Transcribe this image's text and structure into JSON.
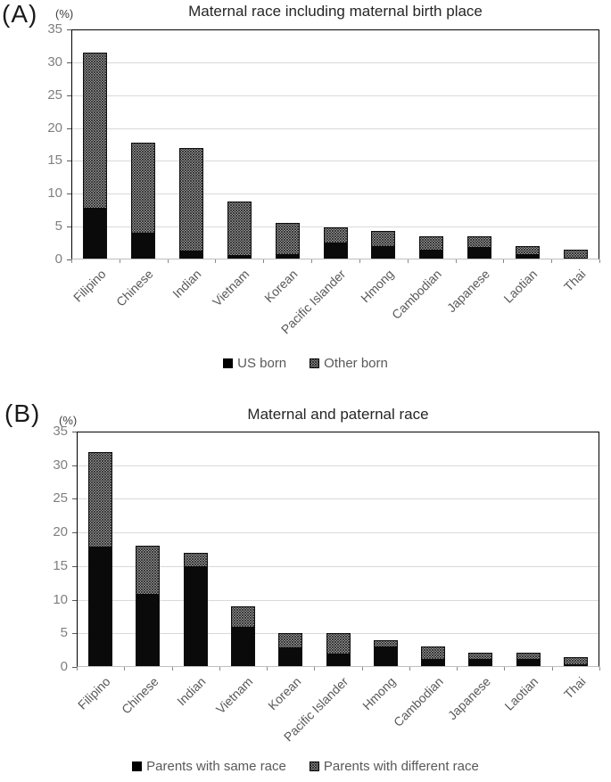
{
  "figure": {
    "panels": [
      {
        "panel_label": "(A)",
        "y_unit": "(%)",
        "title": "Maternal race including maternal birth place"
      },
      {
        "panel_label": "(B)",
        "y_unit": "(%)",
        "title": "Maternal and paternal race"
      }
    ]
  },
  "chart_data": [
    {
      "type": "bar",
      "stacked": true,
      "title": "Maternal race including maternal birth place",
      "panel": "(A)",
      "ylabel": "(%)",
      "xlabel": "",
      "ylim": [
        0,
        35
      ],
      "yticks": [
        0,
        5,
        10,
        15,
        20,
        25,
        30,
        35
      ],
      "grid": true,
      "legend_position": "bottom-center",
      "categories": [
        "Filipino",
        "Chinese",
        "Indian",
        "Vietnam",
        "Korean",
        "Pacific Islander",
        "Hmong",
        "Cambodian",
        "Japanese",
        "Laotian",
        "Thai"
      ],
      "series": [
        {
          "name": "US born",
          "fill": "solid-black",
          "values": [
            8.0,
            4.2,
            1.4,
            0.7,
            0.9,
            2.7,
            2.1,
            1.6,
            1.9,
            0.9,
            0.4
          ]
        },
        {
          "name": "Other born",
          "fill": "dot-pattern",
          "values": [
            23.5,
            13.6,
            15.5,
            8.1,
            4.6,
            2.2,
            2.3,
            1.9,
            1.6,
            1.2,
            1.1
          ]
        }
      ]
    },
    {
      "type": "bar",
      "stacked": true,
      "title": "Maternal and paternal race",
      "panel": "(B)",
      "ylabel": "(%)",
      "xlabel": "",
      "ylim": [
        0,
        35
      ],
      "yticks": [
        0,
        5,
        10,
        15,
        20,
        25,
        30,
        35
      ],
      "grid": true,
      "legend_position": "bottom-center",
      "categories": [
        "Filipino",
        "Chinese",
        "Indian",
        "Vietnam",
        "Korean",
        "Pacific Islander",
        "Hmong",
        "Cambodian",
        "Japanese",
        "Laotian",
        "Thai"
      ],
      "series": [
        {
          "name": "Parents with same race",
          "fill": "solid-black",
          "values": [
            18.0,
            11.0,
            15.0,
            6.0,
            3.0,
            2.0,
            3.1,
            1.2,
            1.2,
            1.2,
            0.5
          ]
        },
        {
          "name": "Parents with different race",
          "fill": "dot-pattern",
          "values": [
            14.0,
            7.0,
            2.0,
            3.0,
            2.0,
            3.0,
            0.9,
            1.8,
            0.9,
            0.9,
            0.9
          ]
        }
      ]
    }
  ],
  "colors": {
    "bar_solid": "#0a0a0a",
    "dot_pattern_dot": "#1a1a1a",
    "dot_pattern_bg": "#ffffff",
    "gridline": "#d9d9d9",
    "plot_border": "#000000",
    "axis_line": "#bfbfbf",
    "tick_text": "#7f7f7f",
    "category_text": "#595959",
    "title_text": "#262626",
    "legend_text": "#595959"
  }
}
